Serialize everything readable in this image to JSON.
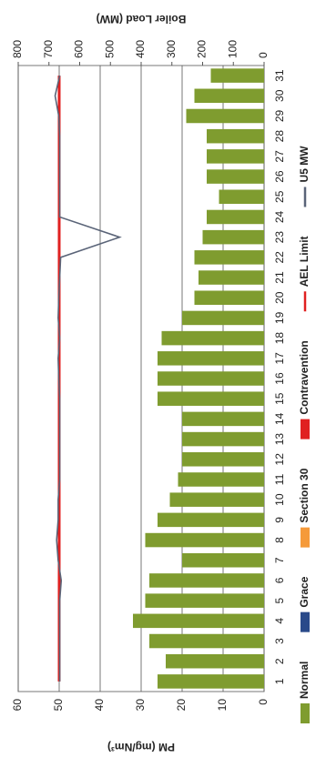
{
  "chart_data": {
    "type": "bar",
    "ylabel": "PM (mg/Nm³)",
    "y2label": "Boiler Load (MW)",
    "categories": [
      "1",
      "2",
      "3",
      "4",
      "5",
      "6",
      "7",
      "8",
      "9",
      "10",
      "11",
      "12",
      "13",
      "14",
      "15",
      "16",
      "17",
      "18",
      "19",
      "20",
      "21",
      "22",
      "23",
      "24",
      "25",
      "26",
      "27",
      "28",
      "29",
      "30",
      "31"
    ],
    "series": [
      {
        "name": "Normal",
        "type": "bar",
        "color": "#7f9c2f",
        "values": [
          26,
          24,
          28,
          32,
          29,
          28,
          20,
          29,
          26,
          23,
          21,
          20,
          20,
          20,
          26,
          26,
          26,
          25,
          20,
          17,
          16,
          17,
          15,
          14,
          11,
          14,
          14,
          14,
          19,
          17,
          13
        ]
      },
      {
        "name": "Grace",
        "type": "bar",
        "color": "#2a4a8a",
        "values": [
          null,
          null,
          null,
          null,
          null,
          null,
          null,
          null,
          null,
          null,
          null,
          null,
          null,
          null,
          null,
          null,
          null,
          null,
          null,
          null,
          null,
          null,
          null,
          null,
          null,
          null,
          null,
          null,
          null,
          null,
          null
        ]
      },
      {
        "name": "Section 30",
        "type": "bar",
        "color": "#f59a3a",
        "values": [
          null,
          null,
          null,
          null,
          null,
          null,
          null,
          null,
          null,
          null,
          null,
          null,
          null,
          null,
          null,
          null,
          null,
          null,
          null,
          null,
          null,
          null,
          null,
          null,
          null,
          null,
          null,
          null,
          null,
          null,
          null
        ]
      },
      {
        "name": "Contravention",
        "type": "bar",
        "color": "#e02020",
        "values": [
          null,
          null,
          null,
          null,
          null,
          null,
          null,
          null,
          null,
          null,
          null,
          null,
          null,
          null,
          null,
          null,
          null,
          null,
          null,
          null,
          null,
          null,
          null,
          null,
          null,
          null,
          null,
          null,
          null,
          null,
          null
        ]
      },
      {
        "name": "AEL Limit",
        "type": "line",
        "color": "#e02020",
        "values": [
          50,
          50,
          50,
          50,
          50,
          50,
          50,
          50,
          50,
          50,
          50,
          50,
          50,
          50,
          50,
          50,
          50,
          50,
          50,
          50,
          50,
          50,
          50,
          50,
          50,
          50,
          50,
          50,
          50,
          50,
          50
        ]
      },
      {
        "name": "U5 MW",
        "type": "line",
        "axis": "y2",
        "color": "#5a6478",
        "values": [
          665,
          665,
          665,
          665,
          665,
          660,
          670,
          675,
          670,
          670,
          665,
          665,
          665,
          665,
          665,
          668,
          670,
          665,
          670,
          668,
          665,
          662,
          470,
          665,
          665,
          665,
          665,
          665,
          668,
          680,
          665
        ]
      }
    ],
    "ylim": [
      0,
      60
    ],
    "yticks": [
      0,
      10,
      20,
      30,
      40,
      50,
      60
    ],
    "y2lim": [
      0,
      800
    ],
    "y2ticks": [
      0,
      100,
      200,
      300,
      400,
      500,
      600,
      700,
      800
    ],
    "grid": true,
    "legend": "bottom"
  }
}
